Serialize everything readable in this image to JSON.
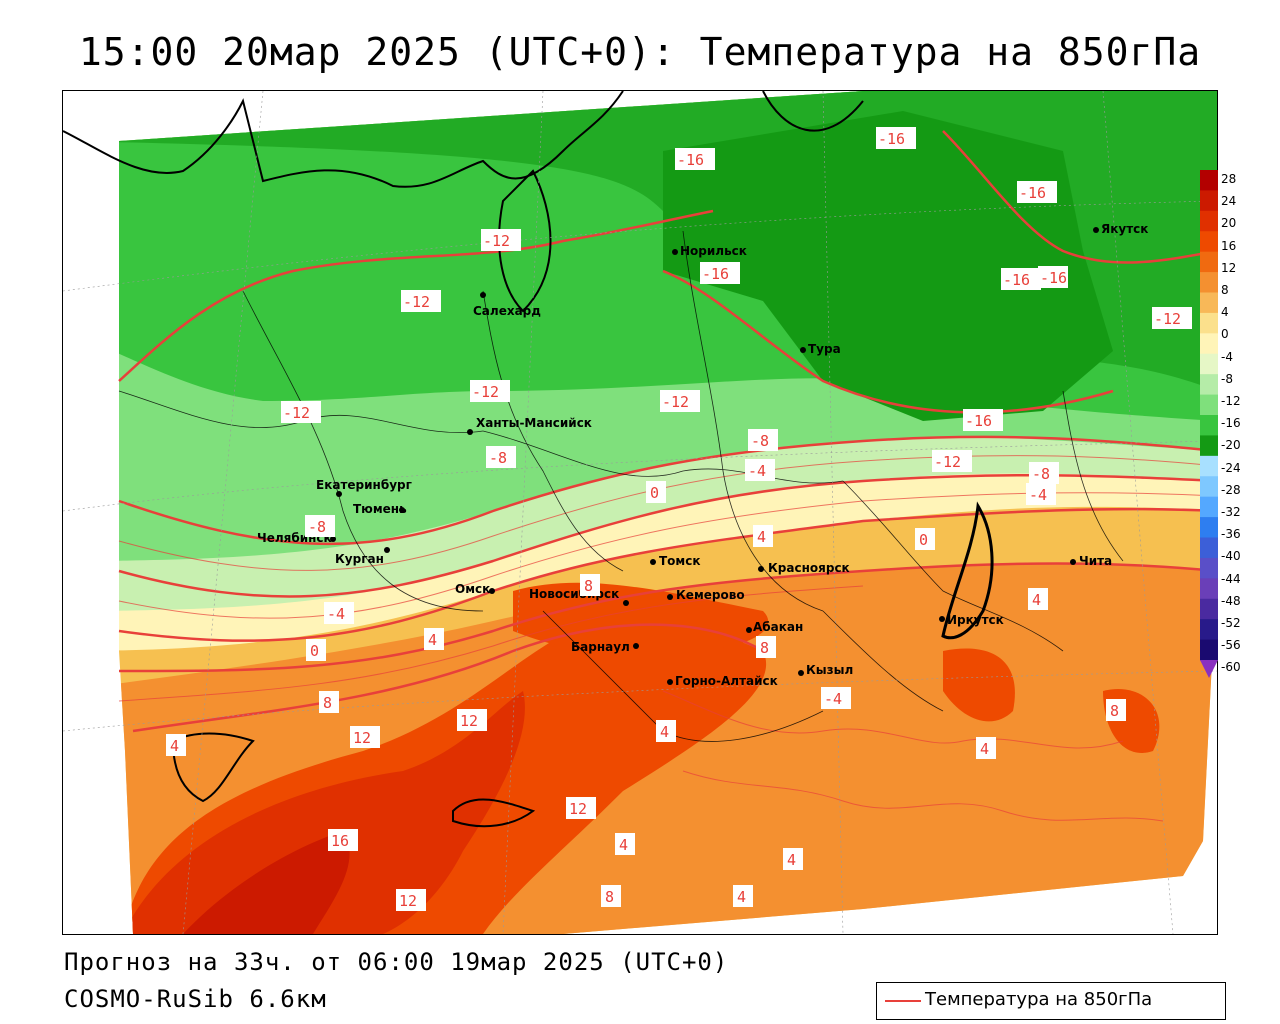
{
  "title": "15:00 20мар 2025 (UTC+0): Температура на 850гПа",
  "footer": {
    "forecast": "Прогноз на 33ч. от 06:00 19мар 2025 (UTC+0)",
    "model": "COSMO-RuSib 6.6км"
  },
  "legend": {
    "label": "Температура на 850гПа",
    "line_color": "#e8403a"
  },
  "colorbar": {
    "ticks": [
      "28",
      "24",
      "20",
      "16",
      "12",
      "8",
      "4",
      "0",
      "-4",
      "-8",
      "-12",
      "-16",
      "-20",
      "-24",
      "-28",
      "-32",
      "-36",
      "-40",
      "-44",
      "-48",
      "-52",
      "-56",
      "-60"
    ],
    "colors": [
      "#b30000",
      "#cc1a00",
      "#e03000",
      "#ee4a00",
      "#f06a10",
      "#f49030",
      "#f8b858",
      "#fbe08c",
      "#fff4b8",
      "#e6f7c6",
      "#b5eca8",
      "#7fe07c",
      "#39c53f",
      "#149a14",
      "#a8e0ff",
      "#7ec8ff",
      "#54a8ff",
      "#2e7ef0",
      "#3c5fd8",
      "#5a4fc8",
      "#6a3fb8",
      "#4a2aa0",
      "#281a8a",
      "#1a0a70"
    ]
  },
  "cities": [
    {
      "name": "Норильск"
    },
    {
      "name": "Якутск"
    },
    {
      "name": "Салехард"
    },
    {
      "name": "Тура"
    },
    {
      "name": "Ханты-Мансийск"
    },
    {
      "name": "Екатеринбург"
    },
    {
      "name": "Тюмень"
    },
    {
      "name": "Челябинск"
    },
    {
      "name": "Курган"
    },
    {
      "name": "Омск"
    },
    {
      "name": "Томск"
    },
    {
      "name": "Красноярск"
    },
    {
      "name": "Новосибирск"
    },
    {
      "name": "Кемерово"
    },
    {
      "name": "Абакан"
    },
    {
      "name": "Барнаул"
    },
    {
      "name": "Иркутск"
    },
    {
      "name": "Чита"
    },
    {
      "name": "Кызыл"
    },
    {
      "name": "Горно-Алтайск"
    }
  ],
  "contour_labels": [
    "-16",
    "-16",
    "-16",
    "-16",
    "-16",
    "-16",
    "-16",
    "-12",
    "-12",
    "-12",
    "-12",
    "-12",
    "-12",
    "-12",
    "-8",
    "-8",
    "-8",
    "-8",
    "-4",
    "-4",
    "-4",
    "-4",
    "0",
    "0",
    "0",
    "4",
    "4",
    "4",
    "4",
    "8",
    "8",
    "8",
    "8",
    "12",
    "12",
    "12",
    "16",
    "12",
    "8",
    "4",
    "4",
    "4",
    "4",
    "4"
  ]
}
